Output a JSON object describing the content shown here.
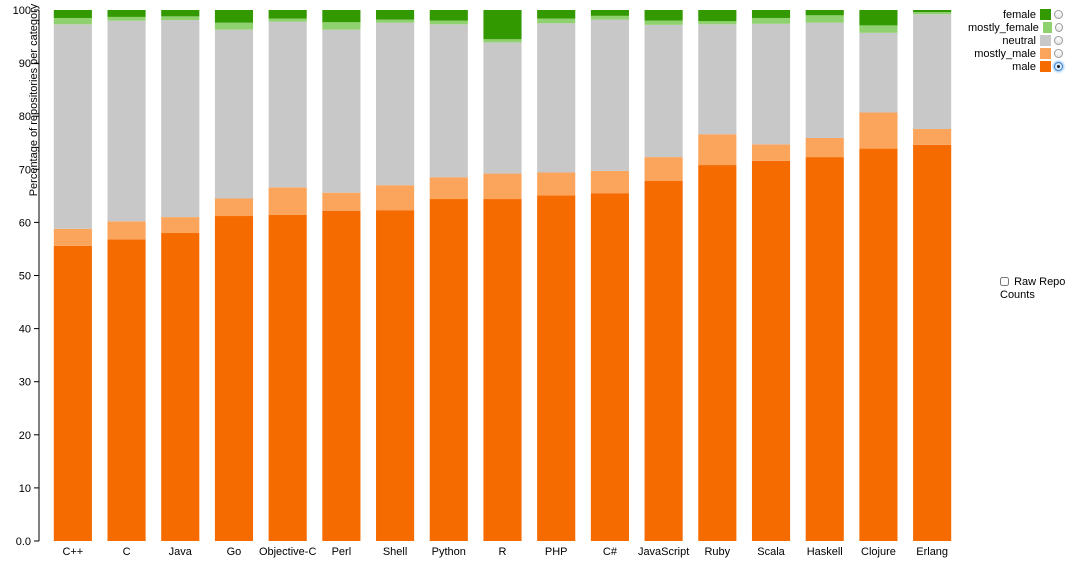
{
  "chart_data": {
    "type": "bar",
    "stacked": true,
    "ylabel": "Percentage of repositories per category",
    "xlabel": "",
    "ylim": [
      0,
      100
    ],
    "yticks": [
      0,
      10,
      20,
      30,
      40,
      50,
      60,
      70,
      80,
      90,
      100
    ],
    "ytick_labels": [
      "0.0",
      "10",
      "20",
      "30",
      "40",
      "50",
      "60",
      "70",
      "80",
      "90",
      "100"
    ],
    "grid": false,
    "legend_position": "top-right",
    "categories": [
      "C++",
      "C",
      "Java",
      "Go",
      "Objective-C",
      "Perl",
      "Shell",
      "Python",
      "R",
      "PHP",
      "C#",
      "JavaScript",
      "Ruby",
      "Scala",
      "Haskell",
      "Clojure",
      "Erlang"
    ],
    "series": [
      {
        "name": "male",
        "color": "#f56b00",
        "values": [
          55.6,
          56.8,
          58.0,
          61.2,
          61.4,
          62.2,
          62.3,
          64.4,
          64.4,
          65.1,
          65.5,
          67.8,
          70.8,
          71.6,
          72.3,
          73.9,
          74.6
        ]
      },
      {
        "name": "mostly_male",
        "color": "#fba45c",
        "values": [
          3.2,
          3.4,
          3.0,
          3.3,
          5.2,
          3.4,
          4.7,
          4.1,
          4.8,
          4.3,
          4.2,
          4.5,
          5.8,
          3.1,
          3.6,
          6.8,
          3.0
        ]
      },
      {
        "name": "neutral",
        "color": "#c8c8c8",
        "values": [
          38.5,
          37.8,
          37.1,
          31.8,
          31.2,
          30.7,
          30.6,
          28.8,
          24.7,
          28.1,
          28.5,
          24.9,
          20.7,
          22.7,
          21.7,
          15.0,
          21.6
        ]
      },
      {
        "name": "mostly_female",
        "color": "#8fd16e",
        "values": [
          1.2,
          0.7,
          0.7,
          1.3,
          0.6,
          1.4,
          0.6,
          0.7,
          0.6,
          0.9,
          0.7,
          0.8,
          0.6,
          1.1,
          1.4,
          1.4,
          0.4
        ]
      },
      {
        "name": "female",
        "color": "#339900",
        "values": [
          1.5,
          1.3,
          1.2,
          2.4,
          1.6,
          2.3,
          1.8,
          2.0,
          5.5,
          1.6,
          1.1,
          2.0,
          2.1,
          1.5,
          1.0,
          2.9,
          0.4
        ]
      }
    ]
  },
  "legend": {
    "items": [
      {
        "label": "female",
        "color": "#339900",
        "selected": false
      },
      {
        "label": "mostly_female",
        "color": "#8fd16e",
        "selected": false
      },
      {
        "label": "neutral",
        "color": "#c8c8c8",
        "selected": false
      },
      {
        "label": "mostly_male",
        "color": "#fba45c",
        "selected": false
      },
      {
        "label": "male",
        "color": "#f56b00",
        "selected": true
      }
    ]
  },
  "controls": {
    "raw_counts_label": "Raw Repo Counts",
    "raw_counts_checked": false
  }
}
